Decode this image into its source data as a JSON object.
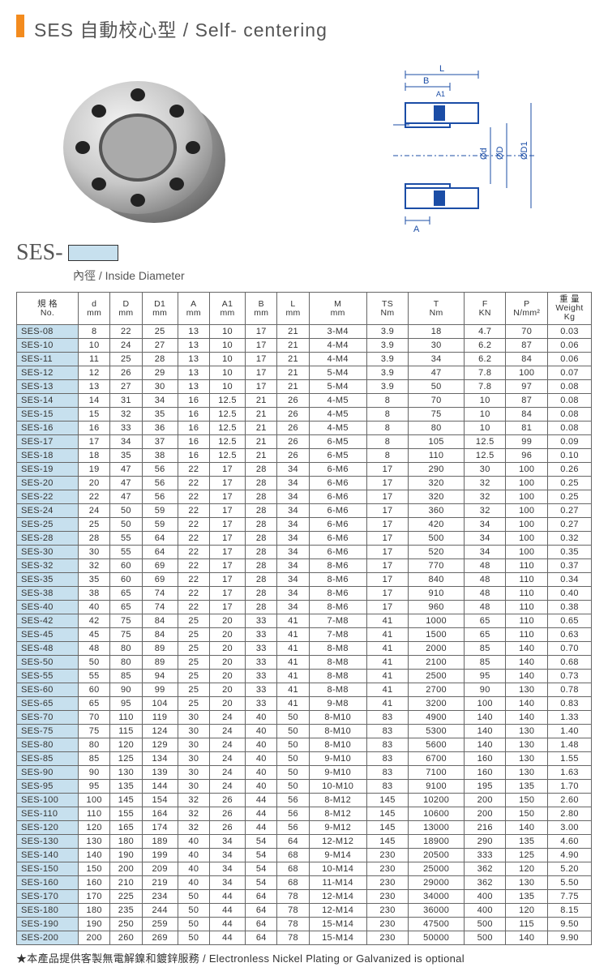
{
  "title": "SES 自動校心型 / Self- centering",
  "ses_prefix": "SES-",
  "ses_sub": "內徑 / Inside Diameter",
  "footnote": "★本產品提供客製無電解鎳和鍍鋅服務 / Electronless Nickel Plating or Galvanized is optional",
  "diagram_labels": {
    "L": "L",
    "B": "B",
    "A1": "A1",
    "A": "A",
    "d": "Ød",
    "D": "ØD",
    "D1": "ØD1"
  },
  "colors": {
    "accent": "#f38b1e",
    "header_blue": "#c7e0ee",
    "stroke": "#1b4da6",
    "border": "#666666"
  },
  "columns": [
    {
      "h1": "規 格",
      "h2": "No."
    },
    {
      "h1": "d",
      "h2": "mm"
    },
    {
      "h1": "D",
      "h2": "mm"
    },
    {
      "h1": "D1",
      "h2": "mm"
    },
    {
      "h1": "A",
      "h2": "mm"
    },
    {
      "h1": "A1",
      "h2": "mm"
    },
    {
      "h1": "B",
      "h2": "mm"
    },
    {
      "h1": "L",
      "h2": "mm"
    },
    {
      "h1": "M",
      "h2": "mm"
    },
    {
      "h1": "TS",
      "h2": "Nm"
    },
    {
      "h1": "T",
      "h2": "Nm"
    },
    {
      "h1": "F",
      "h2": "KN"
    },
    {
      "h1": "P",
      "h2": "N/mm²"
    },
    {
      "h1": "重 量",
      "h2": "Weight Kg"
    }
  ],
  "rows": [
    [
      "SES-08",
      "8",
      "22",
      "25",
      "13",
      "10",
      "17",
      "21",
      "3-M4",
      "3.9",
      "18",
      "4.7",
      "70",
      "0.03"
    ],
    [
      "SES-10",
      "10",
      "24",
      "27",
      "13",
      "10",
      "17",
      "21",
      "4-M4",
      "3.9",
      "30",
      "6.2",
      "87",
      "0.06"
    ],
    [
      "SES-11",
      "11",
      "25",
      "28",
      "13",
      "10",
      "17",
      "21",
      "4-M4",
      "3.9",
      "34",
      "6.2",
      "84",
      "0.06"
    ],
    [
      "SES-12",
      "12",
      "26",
      "29",
      "13",
      "10",
      "17",
      "21",
      "5-M4",
      "3.9",
      "47",
      "7.8",
      "100",
      "0.07"
    ],
    [
      "SES-13",
      "13",
      "27",
      "30",
      "13",
      "10",
      "17",
      "21",
      "5-M4",
      "3.9",
      "50",
      "7.8",
      "97",
      "0.08"
    ],
    [
      "SES-14",
      "14",
      "31",
      "34",
      "16",
      "12.5",
      "21",
      "26",
      "4-M5",
      "8",
      "70",
      "10",
      "87",
      "0.08"
    ],
    [
      "SES-15",
      "15",
      "32",
      "35",
      "16",
      "12.5",
      "21",
      "26",
      "4-M5",
      "8",
      "75",
      "10",
      "84",
      "0.08"
    ],
    [
      "SES-16",
      "16",
      "33",
      "36",
      "16",
      "12.5",
      "21",
      "26",
      "4-M5",
      "8",
      "80",
      "10",
      "81",
      "0.08"
    ],
    [
      "SES-17",
      "17",
      "34",
      "37",
      "16",
      "12.5",
      "21",
      "26",
      "6-M5",
      "8",
      "105",
      "12.5",
      "99",
      "0.09"
    ],
    [
      "SES-18",
      "18",
      "35",
      "38",
      "16",
      "12.5",
      "21",
      "26",
      "6-M5",
      "8",
      "110",
      "12.5",
      "96",
      "0.10"
    ],
    [
      "SES-19",
      "19",
      "47",
      "56",
      "22",
      "17",
      "28",
      "34",
      "6-M6",
      "17",
      "290",
      "30",
      "100",
      "0.26"
    ],
    [
      "SES-20",
      "20",
      "47",
      "56",
      "22",
      "17",
      "28",
      "34",
      "6-M6",
      "17",
      "320",
      "32",
      "100",
      "0.25"
    ],
    [
      "SES-22",
      "22",
      "47",
      "56",
      "22",
      "17",
      "28",
      "34",
      "6-M6",
      "17",
      "320",
      "32",
      "100",
      "0.25"
    ],
    [
      "SES-24",
      "24",
      "50",
      "59",
      "22",
      "17",
      "28",
      "34",
      "6-M6",
      "17",
      "360",
      "32",
      "100",
      "0.27"
    ],
    [
      "SES-25",
      "25",
      "50",
      "59",
      "22",
      "17",
      "28",
      "34",
      "6-M6",
      "17",
      "420",
      "34",
      "100",
      "0.27"
    ],
    [
      "SES-28",
      "28",
      "55",
      "64",
      "22",
      "17",
      "28",
      "34",
      "6-M6",
      "17",
      "500",
      "34",
      "100",
      "0.32"
    ],
    [
      "SES-30",
      "30",
      "55",
      "64",
      "22",
      "17",
      "28",
      "34",
      "6-M6",
      "17",
      "520",
      "34",
      "100",
      "0.35"
    ],
    [
      "SES-32",
      "32",
      "60",
      "69",
      "22",
      "17",
      "28",
      "34",
      "8-M6",
      "17",
      "770",
      "48",
      "110",
      "0.37"
    ],
    [
      "SES-35",
      "35",
      "60",
      "69",
      "22",
      "17",
      "28",
      "34",
      "8-M6",
      "17",
      "840",
      "48",
      "110",
      "0.34"
    ],
    [
      "SES-38",
      "38",
      "65",
      "74",
      "22",
      "17",
      "28",
      "34",
      "8-M6",
      "17",
      "910",
      "48",
      "110",
      "0.40"
    ],
    [
      "SES-40",
      "40",
      "65",
      "74",
      "22",
      "17",
      "28",
      "34",
      "8-M6",
      "17",
      "960",
      "48",
      "110",
      "0.38"
    ],
    [
      "SES-42",
      "42",
      "75",
      "84",
      "25",
      "20",
      "33",
      "41",
      "7-M8",
      "41",
      "1000",
      "65",
      "110",
      "0.65"
    ],
    [
      "SES-45",
      "45",
      "75",
      "84",
      "25",
      "20",
      "33",
      "41",
      "7-M8",
      "41",
      "1500",
      "65",
      "110",
      "0.63"
    ],
    [
      "SES-48",
      "48",
      "80",
      "89",
      "25",
      "20",
      "33",
      "41",
      "8-M8",
      "41",
      "2000",
      "85",
      "140",
      "0.70"
    ],
    [
      "SES-50",
      "50",
      "80",
      "89",
      "25",
      "20",
      "33",
      "41",
      "8-M8",
      "41",
      "2100",
      "85",
      "140",
      "0.68"
    ],
    [
      "SES-55",
      "55",
      "85",
      "94",
      "25",
      "20",
      "33",
      "41",
      "8-M8",
      "41",
      "2500",
      "95",
      "140",
      "0.73"
    ],
    [
      "SES-60",
      "60",
      "90",
      "99",
      "25",
      "20",
      "33",
      "41",
      "8-M8",
      "41",
      "2700",
      "90",
      "130",
      "0.78"
    ],
    [
      "SES-65",
      "65",
      "95",
      "104",
      "25",
      "20",
      "33",
      "41",
      "9-M8",
      "41",
      "3200",
      "100",
      "140",
      "0.83"
    ],
    [
      "SES-70",
      "70",
      "110",
      "119",
      "30",
      "24",
      "40",
      "50",
      "8-M10",
      "83",
      "4900",
      "140",
      "140",
      "1.33"
    ],
    [
      "SES-75",
      "75",
      "115",
      "124",
      "30",
      "24",
      "40",
      "50",
      "8-M10",
      "83",
      "5300",
      "140",
      "130",
      "1.40"
    ],
    [
      "SES-80",
      "80",
      "120",
      "129",
      "30",
      "24",
      "40",
      "50",
      "8-M10",
      "83",
      "5600",
      "140",
      "130",
      "1.48"
    ],
    [
      "SES-85",
      "85",
      "125",
      "134",
      "30",
      "24",
      "40",
      "50",
      "9-M10",
      "83",
      "6700",
      "160",
      "130",
      "1.55"
    ],
    [
      "SES-90",
      "90",
      "130",
      "139",
      "30",
      "24",
      "40",
      "50",
      "9-M10",
      "83",
      "7100",
      "160",
      "130",
      "1.63"
    ],
    [
      "SES-95",
      "95",
      "135",
      "144",
      "30",
      "24",
      "40",
      "50",
      "10-M10",
      "83",
      "9100",
      "195",
      "135",
      "1.70"
    ],
    [
      "SES-100",
      "100",
      "145",
      "154",
      "32",
      "26",
      "44",
      "56",
      "8-M12",
      "145",
      "10200",
      "200",
      "150",
      "2.60"
    ],
    [
      "SES-110",
      "110",
      "155",
      "164",
      "32",
      "26",
      "44",
      "56",
      "8-M12",
      "145",
      "10600",
      "200",
      "150",
      "2.80"
    ],
    [
      "SES-120",
      "120",
      "165",
      "174",
      "32",
      "26",
      "44",
      "56",
      "9-M12",
      "145",
      "13000",
      "216",
      "140",
      "3.00"
    ],
    [
      "SES-130",
      "130",
      "180",
      "189",
      "40",
      "34",
      "54",
      "64",
      "12-M12",
      "145",
      "18900",
      "290",
      "135",
      "4.60"
    ],
    [
      "SES-140",
      "140",
      "190",
      "199",
      "40",
      "34",
      "54",
      "68",
      "9-M14",
      "230",
      "20500",
      "333",
      "125",
      "4.90"
    ],
    [
      "SES-150",
      "150",
      "200",
      "209",
      "40",
      "34",
      "54",
      "68",
      "10-M14",
      "230",
      "25000",
      "362",
      "120",
      "5.20"
    ],
    [
      "SES-160",
      "160",
      "210",
      "219",
      "40",
      "34",
      "54",
      "68",
      "11-M14",
      "230",
      "29000",
      "362",
      "130",
      "5.50"
    ],
    [
      "SES-170",
      "170",
      "225",
      "234",
      "50",
      "44",
      "64",
      "78",
      "12-M14",
      "230",
      "34000",
      "400",
      "135",
      "7.75"
    ],
    [
      "SES-180",
      "180",
      "235",
      "244",
      "50",
      "44",
      "64",
      "78",
      "12-M14",
      "230",
      "36000",
      "400",
      "120",
      "8.15"
    ],
    [
      "SES-190",
      "190",
      "250",
      "259",
      "50",
      "44",
      "64",
      "78",
      "15-M14",
      "230",
      "47500",
      "500",
      "115",
      "9.50"
    ],
    [
      "SES-200",
      "200",
      "260",
      "269",
      "50",
      "44",
      "64",
      "78",
      "15-M14",
      "230",
      "50000",
      "500",
      "140",
      "9.90"
    ]
  ]
}
